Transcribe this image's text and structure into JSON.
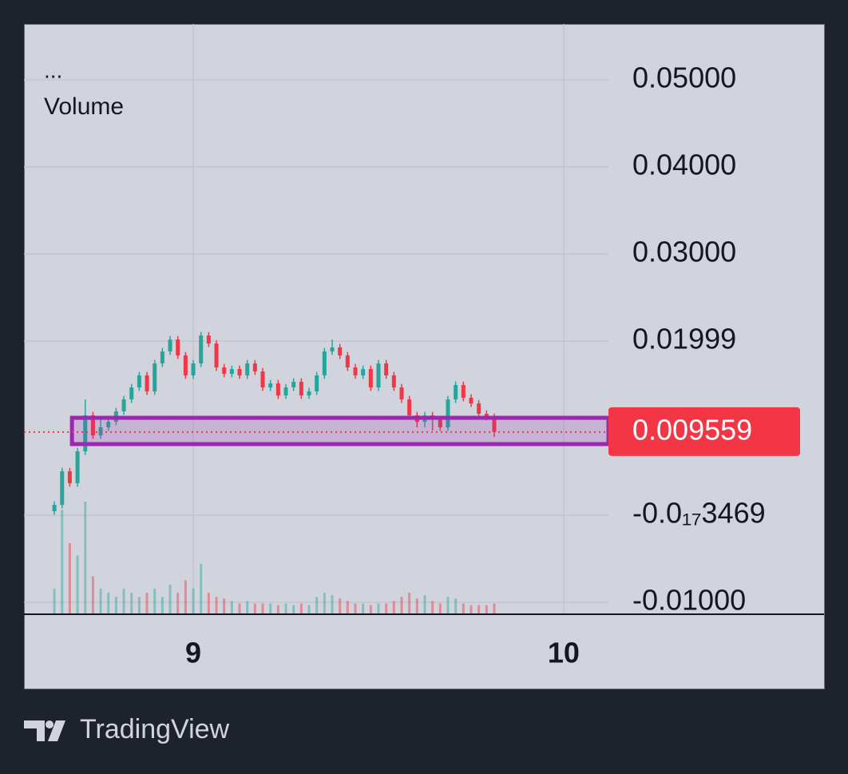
{
  "chart_data": {
    "type": "candlestick",
    "indicators": [
      "...",
      "Volume"
    ],
    "x": [
      -9,
      -8.5,
      -8,
      -7.5,
      -7,
      -6.5,
      -6,
      -5.5,
      -5,
      -4.5,
      -4,
      -3.5,
      -3,
      -2.5,
      -2,
      -1.5,
      -1,
      -0.5,
      0,
      0.5,
      1,
      1.5,
      2,
      2.5,
      3,
      3.5,
      4,
      4.5,
      5,
      5.5,
      6,
      6.5,
      7,
      7.5,
      8,
      8.5,
      9,
      9.5,
      10,
      10.5,
      11,
      11.5,
      12,
      12.5,
      13,
      13.5,
      14,
      14.5,
      15,
      15.5,
      16,
      16.5,
      17,
      17.5,
      18,
      18.5,
      19,
      19.5
    ],
    "open": [
      0.00046,
      0.00119,
      0.00505,
      0.00367,
      0.00734,
      0.01147,
      0.00917,
      0.01009,
      0.01073,
      0.01193,
      0.0133,
      0.01468,
      0.01606,
      0.01422,
      0.01743,
      0.01881,
      0.02018,
      0.01835,
      0.01606,
      0.01743,
      0.02064,
      0.01972,
      0.01697,
      0.01624,
      0.01679,
      0.01606,
      0.01743,
      0.01651,
      0.01468,
      0.01514,
      0.01376,
      0.01468,
      0.01532,
      0.01376,
      0.01422,
      0.01606,
      0.01881,
      0.01927,
      0.01835,
      0.01697,
      0.01606,
      0.01679,
      0.01468,
      0.01743,
      0.01606,
      0.01468,
      0.0133,
      0.01147,
      0.01073,
      0.01147,
      0.01101,
      0.01009,
      0.0133,
      0.01495,
      0.01349,
      0.01284,
      0.01165,
      0.01128
    ],
    "high": [
      0.00159,
      0.00545,
      0.00545,
      0.00774,
      0.0133,
      0.01187,
      0.01101,
      0.01113,
      0.01233,
      0.0137,
      0.01508,
      0.01646,
      0.01646,
      0.01783,
      0.01921,
      0.02058,
      0.02058,
      0.01875,
      0.01783,
      0.02104,
      0.02104,
      0.02012,
      0.01737,
      0.01719,
      0.01719,
      0.01783,
      0.01783,
      0.01691,
      0.01554,
      0.01554,
      0.01508,
      0.01572,
      0.01572,
      0.01462,
      0.01646,
      0.01921,
      0.02018,
      0.01967,
      0.01875,
      0.01737,
      0.01719,
      0.01719,
      0.01783,
      0.01783,
      0.01646,
      0.01508,
      0.0137,
      0.01187,
      0.01187,
      0.01187,
      0.01141,
      0.0137,
      0.01535,
      0.01535,
      0.01389,
      0.01324,
      0.01205,
      0.01168
    ],
    "low": [
      6e-05,
      0.00079,
      0.00327,
      0.00327,
      0.00694,
      0.00877,
      0.00877,
      0.00969,
      0.01033,
      0.01153,
      0.0129,
      0.01428,
      0.01382,
      0.01382,
      0.01703,
      0.01841,
      0.01795,
      0.01566,
      0.01566,
      0.01703,
      0.01932,
      0.01657,
      0.01584,
      0.01584,
      0.01566,
      0.01566,
      0.01611,
      0.01428,
      0.01428,
      0.01336,
      0.01336,
      0.01428,
      0.01336,
      0.01336,
      0.01382,
      0.01566,
      0.01841,
      0.01795,
      0.01657,
      0.01566,
      0.01566,
      0.01428,
      0.01428,
      0.01566,
      0.01428,
      0.0129,
      0.01107,
      0.01009,
      0.01009,
      0.00973,
      0.00969,
      0.00969,
      0.0129,
      0.01309,
      0.01244,
      0.01125,
      0.01088,
      0.00899
    ],
    "close": [
      0.00119,
      0.00505,
      0.00367,
      0.00734,
      0.01147,
      0.00917,
      0.01009,
      0.01073,
      0.01193,
      0.0133,
      0.01468,
      0.01606,
      0.01422,
      0.01743,
      0.01881,
      0.02018,
      0.01835,
      0.01606,
      0.01743,
      0.02064,
      0.01972,
      0.01697,
      0.01624,
      0.01679,
      0.01606,
      0.01743,
      0.01651,
      0.01468,
      0.01514,
      0.01376,
      0.01468,
      0.01532,
      0.01376,
      0.01422,
      0.01606,
      0.01881,
      0.01927,
      0.01835,
      0.01697,
      0.01606,
      0.01679,
      0.01468,
      0.01743,
      0.01606,
      0.01468,
      0.0133,
      0.01147,
      0.01073,
      0.01147,
      0.01101,
      0.01009,
      0.0133,
      0.01495,
      0.01349,
      0.01284,
      0.01165,
      0.01128,
      0.009559
    ],
    "volume": [
      30,
      125,
      85,
      70,
      135,
      45,
      30,
      25,
      20,
      30,
      25,
      20,
      25,
      30,
      20,
      35,
      25,
      40,
      30,
      60,
      25,
      20,
      18,
      15,
      12,
      15,
      12,
      12,
      12,
      10,
      12,
      10,
      12,
      10,
      20,
      25,
      22,
      18,
      15,
      12,
      12,
      10,
      12,
      12,
      15,
      20,
      25,
      18,
      22,
      15,
      12,
      20,
      18,
      12,
      10,
      10,
      10,
      12
    ],
    "up_color": "#26a69a",
    "down_color": "#f23645",
    "xlim": [
      -10.97,
      26.9
    ],
    "xticks": [
      {
        "value": 0,
        "label": "9"
      },
      {
        "value": 24,
        "label": "10"
      }
    ],
    "ylim": [
      -0.01128,
      0.05642
    ],
    "yticks": [
      {
        "value": 0.05,
        "label": "0.05000"
      },
      {
        "value": 0.04,
        "label": "0.04000"
      },
      {
        "value": 0.03,
        "label": "0.03000"
      },
      0.01999,
      {
        "value": -3.469e-18,
        "label": "-0.0₁₇3469"
      },
      {
        "value": -0.01,
        "label": "-0.01000"
      }
    ],
    "grid": true,
    "last_price": 0.009559,
    "zone": {
      "x": -7.86,
      "low": 0.00817,
      "high": 0.01119,
      "color": "#9c27b0"
    }
  },
  "brand": "TradingView"
}
